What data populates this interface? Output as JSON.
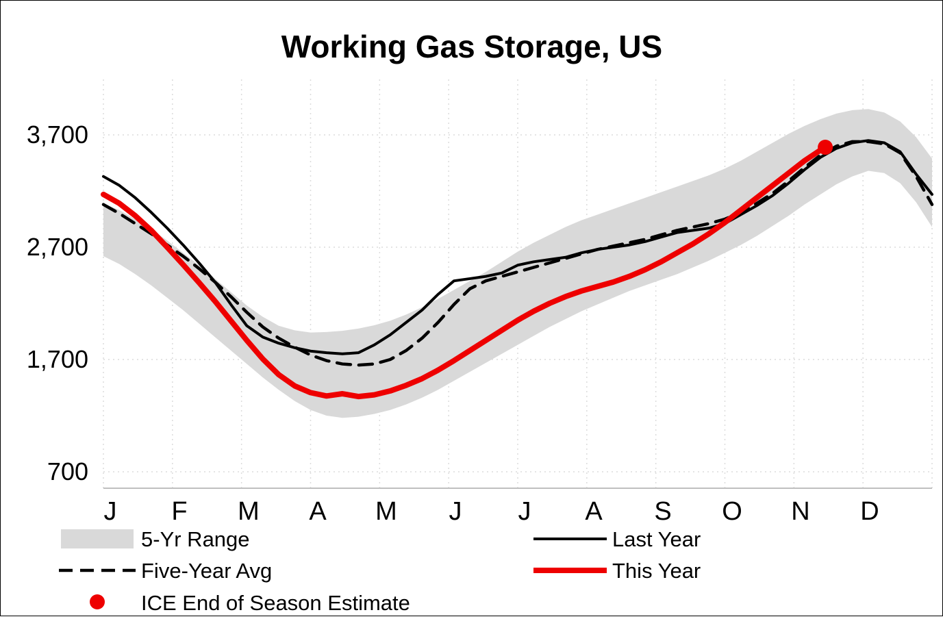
{
  "title": "Working Gas Storage, US",
  "legend": {
    "range_label": "5-Yr Range",
    "avg_label": "Five-Year Avg",
    "ice_label": "ICE End of Season Estimate",
    "last_year_label": "Last Year",
    "this_year_label": "This Year"
  },
  "colors": {
    "band": "#d9d9d9",
    "last_year": "#000000",
    "five_year_avg": "#000000",
    "this_year": "#ee0000",
    "ice_dot": "#ee0000",
    "gridline": "#dcdcdc",
    "axis_line": "#bfbfbf"
  },
  "chart_data": {
    "type": "line",
    "title": "Working Gas Storage, US",
    "x_unit": "week_of_year",
    "x_range": [
      0,
      52
    ],
    "ylim": [
      700,
      3700
    ],
    "grid": true,
    "legend_position": "bottom",
    "y_tick_values": [
      3700,
      2700,
      1700,
      700
    ],
    "y_tick_labels": [
      "3,700",
      "2,700",
      "1,700",
      "700"
    ],
    "x_tick_labels": [
      "J",
      "F",
      "M",
      "A",
      "M",
      "J",
      "J",
      "A",
      "S",
      "O",
      "N",
      "D"
    ],
    "series": [
      {
        "name": "5-Yr Range",
        "type": "band",
        "color": "#d9d9d9",
        "high": [
          3090,
          3030,
          2950,
          2860,
          2760,
          2650,
          2540,
          2420,
          2300,
          2180,
          2080,
          2000,
          1960,
          1940,
          1945,
          1955,
          1975,
          2005,
          2045,
          2100,
          2165,
          2240,
          2320,
          2400,
          2480,
          2570,
          2660,
          2740,
          2810,
          2880,
          2940,
          2990,
          3040,
          3090,
          3140,
          3190,
          3240,
          3290,
          3340,
          3400,
          3470,
          3550,
          3630,
          3710,
          3780,
          3840,
          3890,
          3920,
          3930,
          3900,
          3820,
          3680,
          3490
        ],
        "low": [
          2620,
          2550,
          2460,
          2360,
          2250,
          2140,
          2020,
          1900,
          1780,
          1660,
          1540,
          1430,
          1330,
          1250,
          1200,
          1180,
          1190,
          1215,
          1250,
          1300,
          1360,
          1430,
          1510,
          1590,
          1670,
          1750,
          1830,
          1910,
          1990,
          2060,
          2130,
          2190,
          2250,
          2310,
          2360,
          2410,
          2460,
          2520,
          2580,
          2650,
          2720,
          2800,
          2890,
          2980,
          3080,
          3170,
          3260,
          3330,
          3380,
          3360,
          3270,
          3100,
          2880
        ]
      },
      {
        "name": "Five-Year Avg",
        "type": "line",
        "color": "#000000",
        "dashed": true,
        "width": 4.5,
        "values": [
          3080,
          3000,
          2910,
          2820,
          2720,
          2620,
          2510,
          2390,
          2260,
          2120,
          1990,
          1890,
          1810,
          1740,
          1690,
          1660,
          1650,
          1660,
          1700,
          1780,
          1890,
          2030,
          2190,
          2330,
          2400,
          2440,
          2480,
          2520,
          2560,
          2600,
          2640,
          2680,
          2710,
          2740,
          2770,
          2810,
          2850,
          2880,
          2910,
          2950,
          3010,
          3090,
          3180,
          3290,
          3410,
          3520,
          3600,
          3640,
          3640,
          3620,
          3540,
          3330,
          3080
        ]
      },
      {
        "name": "Last Year",
        "type": "line",
        "color": "#000000",
        "dashed": false,
        "width": 4,
        "values": [
          3330,
          3250,
          3140,
          3010,
          2870,
          2720,
          2560,
          2390,
          2190,
          2000,
          1900,
          1845,
          1805,
          1775,
          1760,
          1750,
          1760,
          1830,
          1920,
          2030,
          2140,
          2280,
          2400,
          2420,
          2440,
          2470,
          2540,
          2570,
          2590,
          2610,
          2650,
          2680,
          2700,
          2720,
          2750,
          2790,
          2830,
          2850,
          2870,
          2910,
          2990,
          3070,
          3160,
          3270,
          3390,
          3500,
          3580,
          3630,
          3650,
          3630,
          3550,
          3350,
          3170
        ]
      },
      {
        "name": "This Year",
        "type": "line",
        "color": "#ee0000",
        "dashed": false,
        "width": 8,
        "values": [
          3170,
          3090,
          2980,
          2850,
          2700,
          2545,
          2385,
          2220,
          2045,
          1870,
          1705,
          1565,
          1465,
          1405,
          1375,
          1395,
          1370,
          1385,
          1420,
          1470,
          1530,
          1605,
          1690,
          1780,
          1870,
          1960,
          2050,
          2130,
          2200,
          2260,
          2310,
          2350,
          2390,
          2440,
          2500,
          2570,
          2650,
          2730,
          2820,
          2920,
          3030,
          3140,
          3250,
          3360,
          3470,
          3565
        ]
      },
      {
        "name": "ICE End of Season Estimate",
        "type": "point",
        "color": "#ee0000",
        "x": 45.3,
        "y": 3590
      }
    ]
  }
}
